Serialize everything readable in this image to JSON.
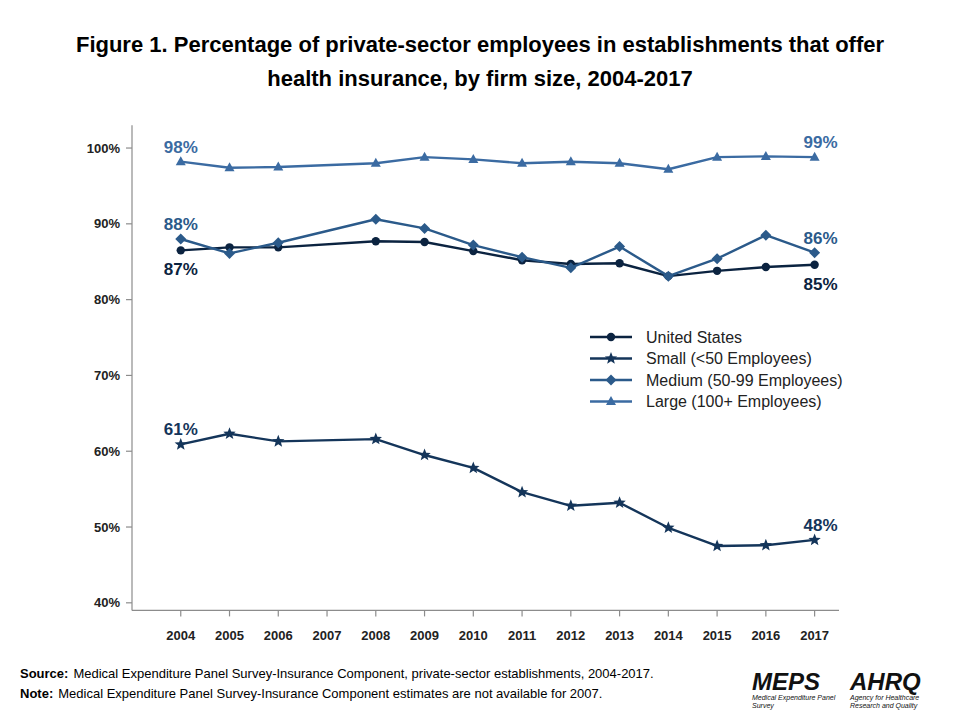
{
  "chart_data": {
    "type": "line",
    "title": "Figure 1. Percentage of private-sector employees in establishments that offer health insurance, by firm size, 2004-2017",
    "x": [
      2004,
      2005,
      2006,
      2008,
      2009,
      2010,
      2011,
      2012,
      2013,
      2014,
      2015,
      2016,
      2017
    ],
    "xlim": [
      2003,
      2017.5
    ],
    "xticks": [
      2004,
      2005,
      2006,
      2007,
      2008,
      2009,
      2010,
      2011,
      2012,
      2013,
      2014,
      2015,
      2016,
      2017
    ],
    "ylim": [
      39,
      103
    ],
    "yticks": [
      {
        "value": 40,
        "label": "40%"
      },
      {
        "value": 50,
        "label": "50%"
      },
      {
        "value": 60,
        "label": "60%"
      },
      {
        "value": 70,
        "label": "70%"
      },
      {
        "value": 80,
        "label": "80%"
      },
      {
        "value": 90,
        "label": "90%"
      },
      {
        "value": 100,
        "label": "100%"
      }
    ],
    "grid": false,
    "legend": "right",
    "series": [
      {
        "name": "United States",
        "color": "#0b2340",
        "marker": "circle",
        "line_style": "solid",
        "values": [
          86.5,
          86.9,
          86.9,
          87.7,
          87.6,
          86.4,
          85.2,
          84.7,
          84.8,
          83.1,
          83.8,
          84.3,
          84.6
        ],
        "value_labels": [
          "87%",
          null,
          null,
          null,
          null,
          null,
          null,
          null,
          null,
          null,
          null,
          null,
          "85%"
        ]
      },
      {
        "name": "Small (<50 Employees)",
        "color": "#14355a",
        "marker": "star",
        "line_style": "solid",
        "values": [
          60.9,
          62.3,
          61.3,
          61.6,
          59.5,
          57.8,
          54.6,
          52.8,
          53.2,
          49.9,
          47.5,
          47.6,
          48.3
        ],
        "value_labels": [
          "61%",
          null,
          null,
          null,
          null,
          null,
          null,
          null,
          null,
          null,
          null,
          null,
          "48%"
        ]
      },
      {
        "name": "Medium (50-99 Employees)",
        "color": "#2b5a8a",
        "marker": "diamond",
        "line_style": "solid",
        "values": [
          88.0,
          86.1,
          87.5,
          90.6,
          89.4,
          87.2,
          85.6,
          84.2,
          87.0,
          83.1,
          85.4,
          88.5,
          86.2
        ],
        "value_labels": [
          "88%",
          null,
          null,
          null,
          null,
          null,
          null,
          null,
          null,
          null,
          null,
          null,
          "86%"
        ]
      },
      {
        "name": "Large (100+ Employees)",
        "color": "#3b6ba2",
        "marker": "triangle",
        "line_style": "solid",
        "values": [
          98.2,
          97.4,
          97.5,
          98.0,
          98.8,
          98.5,
          98.0,
          98.2,
          98.0,
          97.2,
          98.8,
          98.9,
          98.8
        ],
        "value_labels": [
          "98%",
          null,
          null,
          null,
          null,
          null,
          null,
          null,
          null,
          null,
          null,
          null,
          "99%"
        ]
      }
    ],
    "notes": [
      {
        "label": "Source:",
        "text": "Medical Expenditure Panel Survey-Insurance Component, private-sector establishments, 2004-2017."
      },
      {
        "label": "Note:",
        "text": "Medical Expenditure Panel Survey-Insurance Component estimates are not available for 2007."
      }
    ],
    "logos": [
      {
        "text": "MEPS",
        "caption": "Medical Expenditure Panel Survey"
      },
      {
        "text": "AHRQ",
        "caption": "Agency for Healthcare Research and Quality"
      }
    ]
  }
}
